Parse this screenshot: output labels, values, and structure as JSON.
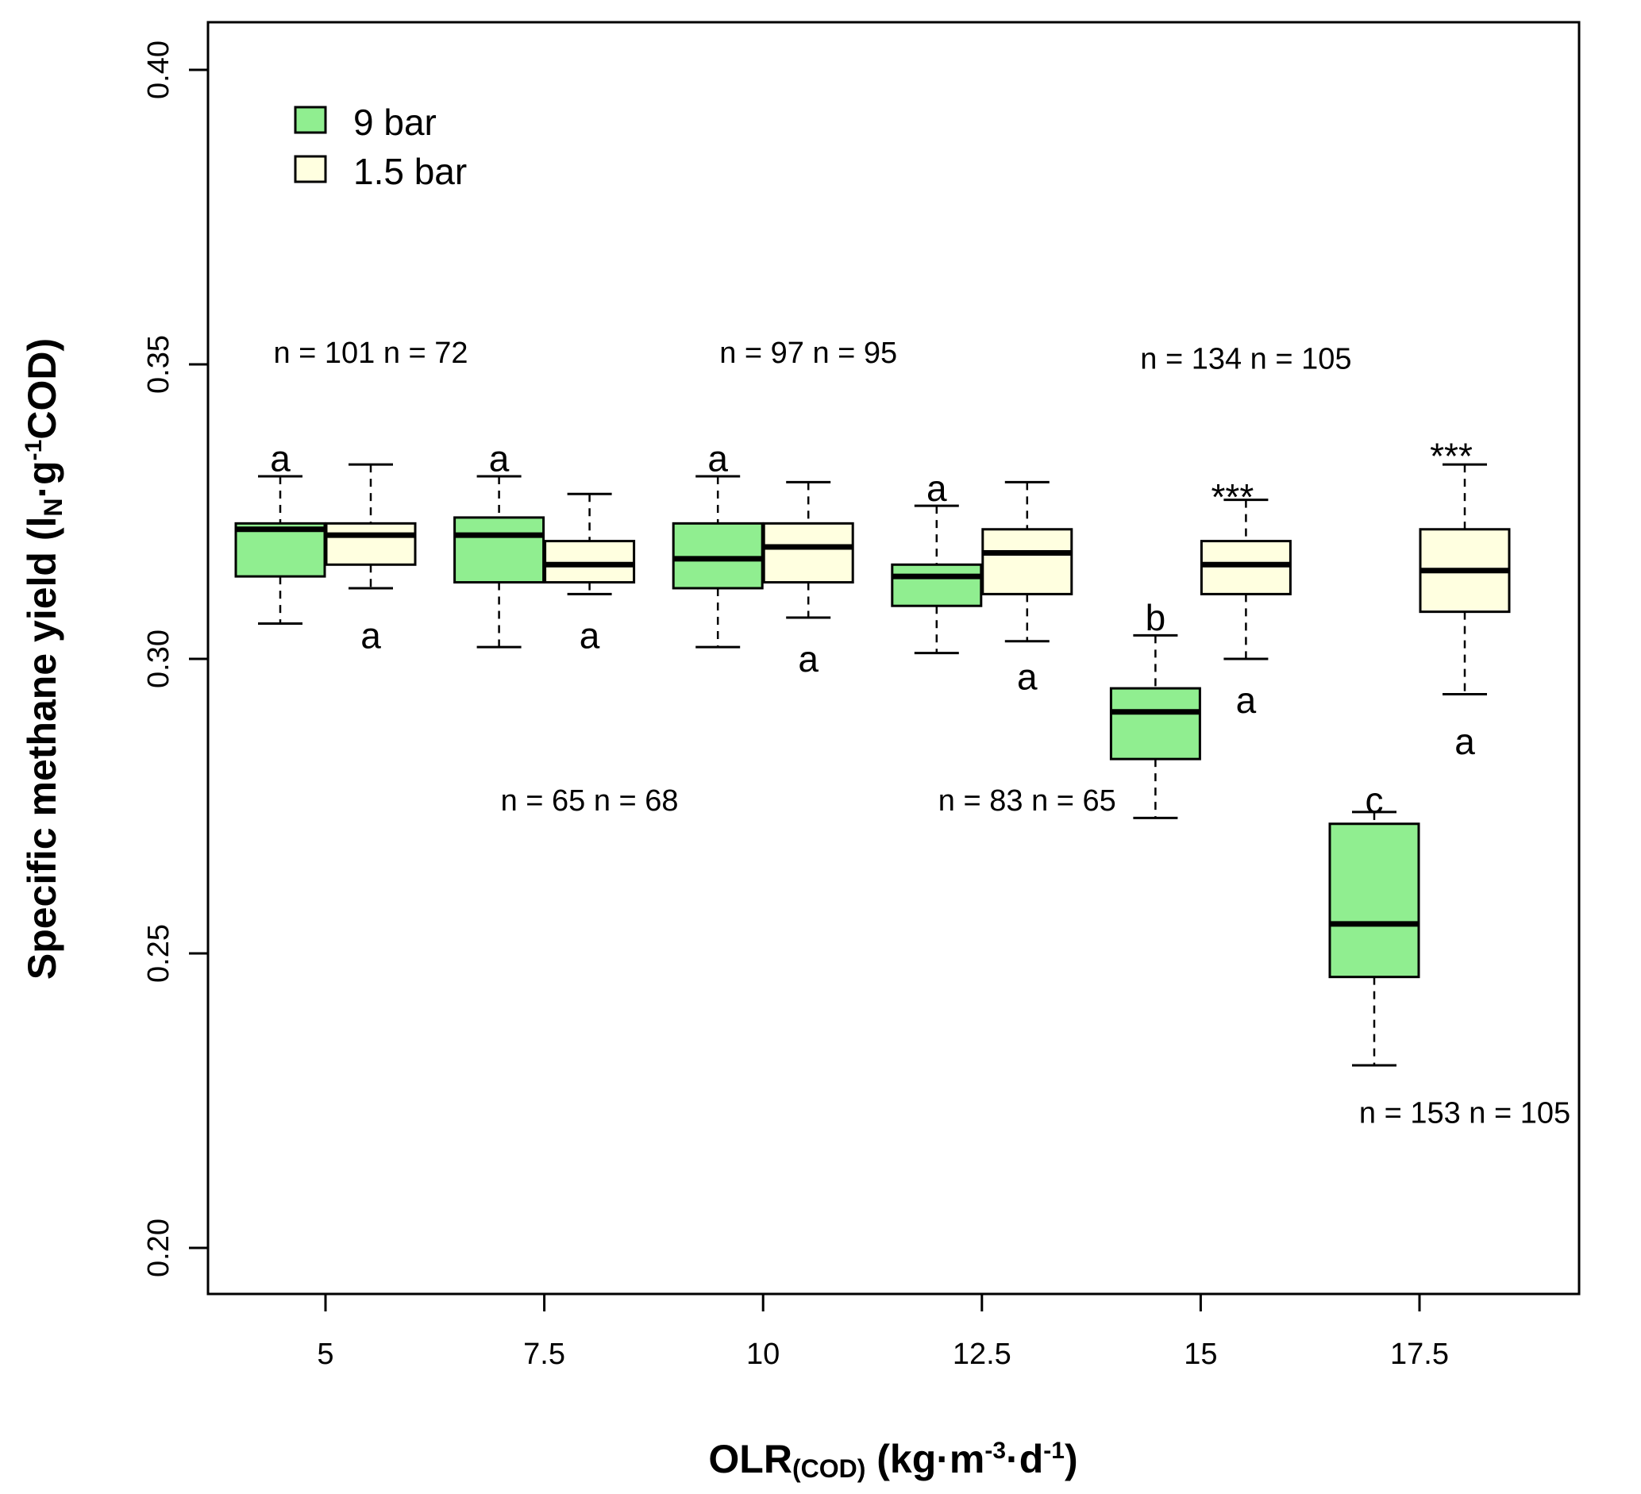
{
  "chart_data": {
    "type": "boxplot",
    "xlabel": {
      "main": "OLR",
      "sub": "(COD)",
      "units_pre": " (kg·m",
      "sup1": "-3",
      "units_mid": "·d",
      "sup2": "-1",
      "units_post": ")"
    },
    "ylabel": {
      "main": "Specific methane yield  (l",
      "sub": "N",
      "mid": "·g",
      "sup": "-1",
      "post": "COD)"
    },
    "ylim": [
      0.2,
      0.4
    ],
    "yticks": [
      "0.20",
      "0.25",
      "0.30",
      "0.35",
      "0.40"
    ],
    "categories": [
      "5",
      "7.5",
      "10",
      "12.5",
      "15",
      "17.5"
    ],
    "legend": {
      "position": "top-left",
      "entries": [
        {
          "label": "9 bar",
          "color": "#90ee90"
        },
        {
          "label": "1.5 bar",
          "color": "#ffffe0"
        }
      ]
    },
    "series": [
      {
        "name": "9 bar",
        "color": "#90ee90",
        "boxes": [
          {
            "category": "5",
            "min": 0.306,
            "q1": 0.314,
            "median": 0.322,
            "q3": 0.323,
            "max": 0.331
          },
          {
            "category": "7.5",
            "min": 0.302,
            "q1": 0.313,
            "median": 0.321,
            "q3": 0.324,
            "max": 0.331
          },
          {
            "category": "10",
            "min": 0.302,
            "q1": 0.312,
            "median": 0.317,
            "q3": 0.323,
            "max": 0.331
          },
          {
            "category": "12.5",
            "min": 0.301,
            "q1": 0.309,
            "median": 0.314,
            "q3": 0.316,
            "max": 0.326
          },
          {
            "category": "15",
            "min": 0.273,
            "q1": 0.283,
            "median": 0.291,
            "q3": 0.295,
            "max": 0.304
          },
          {
            "category": "17.5",
            "min": 0.231,
            "q1": 0.246,
            "median": 0.255,
            "q3": 0.272,
            "max": 0.274
          }
        ]
      },
      {
        "name": "1.5 bar",
        "color": "#ffffe0",
        "boxes": [
          {
            "category": "5",
            "min": 0.312,
            "q1": 0.316,
            "median": 0.321,
            "q3": 0.323,
            "max": 0.333
          },
          {
            "category": "7.5",
            "min": 0.311,
            "q1": 0.313,
            "median": 0.316,
            "q3": 0.32,
            "max": 0.328
          },
          {
            "category": "10",
            "min": 0.307,
            "q1": 0.313,
            "median": 0.319,
            "q3": 0.323,
            "max": 0.33
          },
          {
            "category": "12.5",
            "min": 0.303,
            "q1": 0.311,
            "median": 0.318,
            "q3": 0.322,
            "max": 0.33
          },
          {
            "category": "15",
            "min": 0.3,
            "q1": 0.311,
            "median": 0.316,
            "q3": 0.32,
            "max": 0.327
          },
          {
            "category": "17.5",
            "min": 0.294,
            "q1": 0.308,
            "median": 0.315,
            "q3": 0.322,
            "max": 0.333
          }
        ]
      }
    ],
    "annotations": {
      "sample_sizes": [
        {
          "category": "5",
          "text": "n = 101 n = 72",
          "y": 0.352
        },
        {
          "category": "7.5",
          "text": "n = 65 n = 68",
          "y": 0.276
        },
        {
          "category": "10",
          "text": "n = 97 n = 95",
          "y": 0.352
        },
        {
          "category": "12.5",
          "text": "n = 83 n = 65",
          "y": 0.276
        },
        {
          "category": "15",
          "text": "n = 134 n = 105",
          "y": 0.351
        },
        {
          "category": "17.5",
          "text": "n = 153 n = 105",
          "y": 0.223
        }
      ],
      "group_letters": [
        {
          "series": "9 bar",
          "category": "5",
          "text": "a",
          "y": 0.334
        },
        {
          "series": "1.5 bar",
          "category": "5",
          "text": "a",
          "y": 0.304
        },
        {
          "series": "9 bar",
          "category": "7.5",
          "text": "a",
          "y": 0.334
        },
        {
          "series": "1.5 bar",
          "category": "7.5",
          "text": "a",
          "y": 0.304
        },
        {
          "series": "9 bar",
          "category": "10",
          "text": "a",
          "y": 0.334
        },
        {
          "series": "1.5 bar",
          "category": "10",
          "text": "a",
          "y": 0.3
        },
        {
          "series": "9 bar",
          "category": "12.5",
          "text": "a",
          "y": 0.329
        },
        {
          "series": "1.5 bar",
          "category": "12.5",
          "text": "a",
          "y": 0.297
        },
        {
          "series": "9 bar",
          "category": "15",
          "text": "b",
          "y": 0.307
        },
        {
          "series": "1.5 bar",
          "category": "15",
          "text": "a",
          "y": 0.293
        },
        {
          "series": "9 bar",
          "category": "17.5",
          "text": "c",
          "y": 0.276
        },
        {
          "series": "1.5 bar",
          "category": "17.5",
          "text": "a",
          "y": 0.286
        }
      ],
      "significance": [
        {
          "category": "15",
          "text": "***",
          "y": 0.328
        },
        {
          "category": "17.5",
          "text": "***",
          "y": 0.335
        }
      ]
    }
  }
}
